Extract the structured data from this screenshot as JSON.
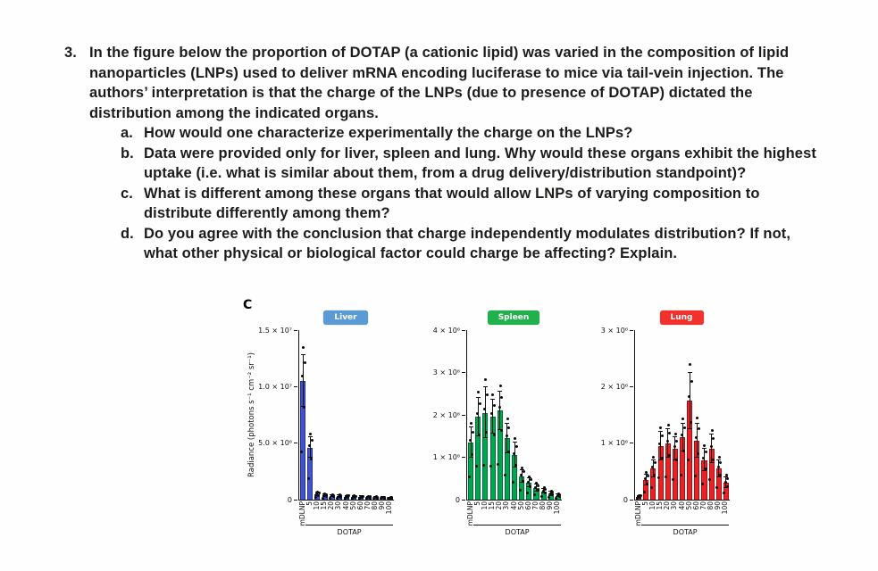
{
  "question": {
    "number": "3.",
    "text": "In the figure below the proportion of DOTAP (a cationic lipid) was varied in the composition of lipid nanoparticles (LNPs) used to deliver mRNA encoding luciferase to mice via tail-vein injection. The authors’ interpretation is that the charge of the LNPs (due to presence of DOTAP) dictated the distribution among the indicated organs.",
    "subitems": [
      {
        "letter": "a.",
        "text": "How would one characterize experimentally the charge on the LNPs?"
      },
      {
        "letter": "b.",
        "text": "Data were provided only for liver, spleen and lung. Why would these organs exhibit the highest uptake (i.e. what is similar about them, from a drug delivery/distribution standpoint)?"
      },
      {
        "letter": "c.",
        "text": "What is different among these organs that would allow LNPs of varying composition to distribute differently among them?"
      },
      {
        "letter": "d.",
        "text": "Do you agree with the conclusion that charge independently modulates distribution? If not, what other physical or biological factor could charge be affecting? Explain."
      }
    ]
  },
  "figure": {
    "panel_label": "C",
    "y_axis_label": "Radiance (photons s⁻¹ cm⁻² sr⁻¹)"
  },
  "chart_data": [
    {
      "type": "bar",
      "organ": "Liver",
      "badge_color": "#5b9bd5",
      "bar_fill": "#4353c9",
      "bar_edge": "#232e8e",
      "ylim": [
        0,
        15000000
      ],
      "yticks": [
        {
          "value": 0,
          "label": "0"
        },
        {
          "value": 5000000,
          "label": "5.0 × 10⁶"
        },
        {
          "value": 10000000,
          "label": "1.0 × 10⁷"
        },
        {
          "value": 15000000,
          "label": "1.5 × 10⁷"
        }
      ],
      "categories": [
        "mDLNP",
        "5",
        "10",
        "15",
        "20",
        "30",
        "40",
        "50",
        "60",
        "70",
        "80",
        "90",
        "100"
      ],
      "values": [
        10500000,
        4600000,
        500000,
        380000,
        320000,
        300000,
        270000,
        250000,
        220000,
        200000,
        180000,
        160000,
        140000
      ],
      "errors": [
        2300000,
        900000,
        160000,
        120000,
        100000,
        90000,
        80000,
        70000,
        60000,
        60000,
        50000,
        50000,
        40000
      ],
      "xlabel": "DOTAP"
    },
    {
      "type": "bar",
      "organ": "Spleen",
      "badge_color": "#21b14c",
      "bar_fill": "#00a550",
      "bar_edge": "#046b36",
      "ylim": [
        0,
        4000000
      ],
      "yticks": [
        {
          "value": 0,
          "label": "0"
        },
        {
          "value": 1000000,
          "label": "1 × 10⁶"
        },
        {
          "value": 2000000,
          "label": "2 × 10⁶"
        },
        {
          "value": 3000000,
          "label": "3 × 10⁶"
        },
        {
          "value": 4000000,
          "label": "4 × 10⁶"
        }
      ],
      "categories": [
        "mDLNP",
        "5",
        "10",
        "15",
        "20",
        "30",
        "40",
        "50",
        "60",
        "70",
        "80",
        "90",
        "100"
      ],
      "values": [
        1350000,
        1950000,
        2050000,
        1950000,
        2100000,
        1450000,
        1050000,
        550000,
        400000,
        280000,
        200000,
        140000,
        90000
      ],
      "errors": [
        350000,
        450000,
        600000,
        400000,
        450000,
        350000,
        300000,
        150000,
        110000,
        80000,
        60000,
        50000,
        30000
      ],
      "xlabel": "DOTAP"
    },
    {
      "type": "bar",
      "organ": "Lung",
      "badge_color": "#f2312d",
      "bar_fill": "#ed2024",
      "bar_edge": "#9e1215",
      "ylim": [
        0,
        3000000
      ],
      "yticks": [
        {
          "value": 0,
          "label": "0"
        },
        {
          "value": 1000000,
          "label": "1 × 10⁶"
        },
        {
          "value": 2000000,
          "label": "2 × 10⁶"
        },
        {
          "value": 3000000,
          "label": "3 × 10⁶"
        }
      ],
      "categories": [
        "mDLNP",
        "5",
        "10",
        "15",
        "20",
        "30",
        "40",
        "50",
        "60",
        "70",
        "80",
        "90",
        "100"
      ],
      "values": [
        50000,
        350000,
        550000,
        950000,
        1000000,
        900000,
        1100000,
        1750000,
        1050000,
        700000,
        900000,
        550000,
        300000
      ],
      "errors": [
        20000,
        100000,
        150000,
        250000,
        250000,
        200000,
        250000,
        500000,
        300000,
        200000,
        250000,
        150000,
        100000
      ],
      "xlabel": "DOTAP"
    }
  ]
}
